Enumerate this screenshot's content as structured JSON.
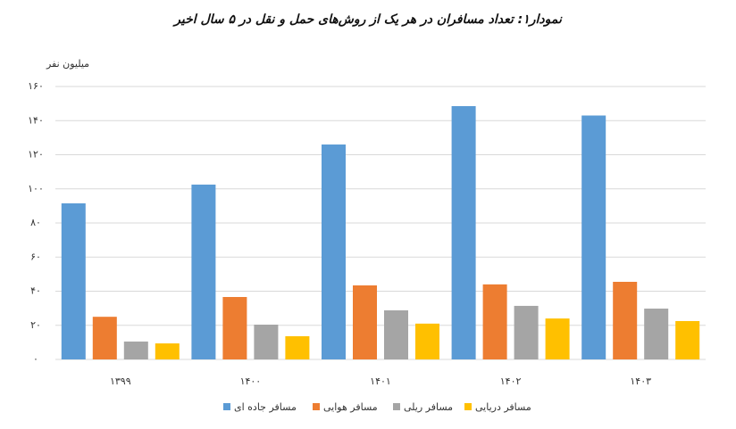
{
  "chart_data": {
    "type": "bar",
    "title": "نمودار۱: تعداد مسافران در هر یک از روش‌های حمل و نقل در ۵ سال اخیر",
    "y_label": "میلیون نفر",
    "categories": [
      "۱۳۹۹",
      "۱۴۰۰",
      "۱۴۰۱",
      "۱۴۰۲",
      "۱۴۰۳"
    ],
    "series": [
      {
        "name": "مسافر جاده ای",
        "color": "#5b9bd5",
        "values": [
          91.5,
          102.5,
          126,
          148.5,
          143
        ]
      },
      {
        "name": "مسافر هوایی",
        "color": "#ed7d31",
        "values": [
          25,
          36.6,
          43.4,
          44,
          45.5
        ]
      },
      {
        "name": "مسافر ریلی",
        "color": "#a5a5a5",
        "values": [
          10.5,
          20.4,
          28.8,
          31.4,
          29.8
        ]
      },
      {
        "name": "مسافر دریایی",
        "color": "#ffc000",
        "values": [
          9.4,
          13.6,
          21,
          24,
          22.5
        ]
      }
    ],
    "ylim": [
      0,
      160
    ],
    "yticks": [
      {
        "value": 0,
        "label": "۰"
      },
      {
        "value": 20,
        "label": "۲۰"
      },
      {
        "value": 40,
        "label": "۴۰"
      },
      {
        "value": 60,
        "label": "۶۰"
      },
      {
        "value": 80,
        "label": "۸۰"
      },
      {
        "value": 100,
        "label": "۱۰۰"
      },
      {
        "value": 120,
        "label": "۱۲۰"
      },
      {
        "value": 140,
        "label": "۱۴۰"
      },
      {
        "value": 160,
        "label": "۱۶۰"
      }
    ],
    "grid": true,
    "legend": "bottom"
  }
}
